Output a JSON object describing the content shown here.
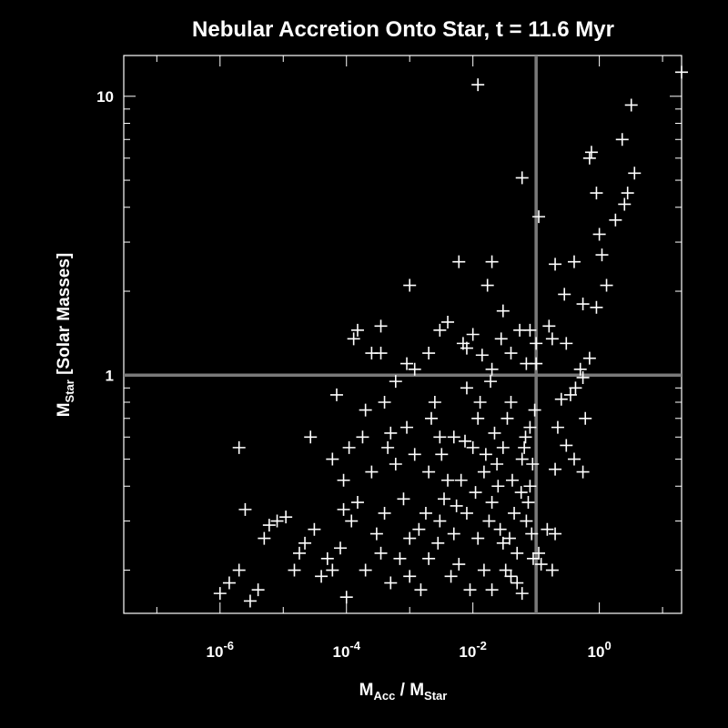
{
  "chart_data": {
    "type": "scatter",
    "title": "Nebular Accretion Onto Star, t = 11.6 Myr",
    "xlabel": {
      "main": "M",
      "sub1": "Acc",
      "mid": " / M",
      "sub2": "Star"
    },
    "ylabel": {
      "main": "M",
      "sub": "Star",
      "rest": " [Solar Masses]"
    },
    "x_scale": "log",
    "y_scale": "log",
    "xlim": [
      3e-08,
      20.0
    ],
    "ylim": [
      0.14,
      14
    ],
    "x_ticks": [
      {
        "base": "10",
        "exp": "-6",
        "value": 1e-06
      },
      {
        "base": "10",
        "exp": "-4",
        "value": 0.0001
      },
      {
        "base": "10",
        "exp": "-2",
        "value": 0.01
      },
      {
        "base": "10",
        "exp": "0",
        "value": 1
      }
    ],
    "y_ticks": [
      {
        "label": "1",
        "value": 1
      },
      {
        "label": "10",
        "value": 10
      }
    ],
    "reference_lines": {
      "x": 0.1,
      "y": 1
    },
    "colors": {
      "background": "#000000",
      "points": "#ffffff",
      "reference_lines": "#7a7a7a"
    },
    "marker": "plus",
    "grid": false,
    "series": [
      {
        "points": [
          [
            20,
            12.2
          ],
          [
            3.2,
            9.3
          ],
          [
            2.3,
            7.0
          ],
          [
            0.75,
            6.3
          ],
          [
            0.7,
            6.0
          ],
          [
            3.6,
            5.3
          ],
          [
            2.8,
            4.5
          ],
          [
            0.9,
            4.5
          ],
          [
            2.5,
            4.1
          ],
          [
            1.8,
            3.6
          ],
          [
            1.0,
            3.2
          ],
          [
            1.1,
            2.7
          ],
          [
            0.4,
            2.55
          ],
          [
            0.2,
            2.5
          ],
          [
            1.3,
            2.1
          ],
          [
            0.55,
            1.8
          ],
          [
            0.28,
            1.95
          ],
          [
            0.9,
            1.75
          ],
          [
            0.012,
            11
          ],
          [
            0.06,
            5.1
          ],
          [
            0.11,
            3.7
          ],
          [
            0.02,
            2.55
          ],
          [
            0.017,
            2.1
          ],
          [
            0.006,
            2.55
          ],
          [
            0.001,
            2.1
          ],
          [
            0.03,
            1.7
          ],
          [
            0.16,
            1.5
          ],
          [
            0.08,
            1.45
          ],
          [
            0.18,
            1.35
          ],
          [
            0.3,
            1.3
          ],
          [
            0.7,
            1.15
          ],
          [
            0.5,
            1.05
          ],
          [
            0.55,
            0.98
          ],
          [
            0.42,
            0.9
          ],
          [
            0.35,
            0.85
          ],
          [
            0.25,
            0.82
          ],
          [
            0.6,
            0.7
          ],
          [
            0.22,
            0.65
          ],
          [
            0.55,
            0.45
          ],
          [
            0.4,
            0.5
          ],
          [
            0.3,
            0.56
          ],
          [
            0.2,
            0.46
          ],
          [
            0.2,
            0.27
          ],
          [
            0.15,
            0.28
          ],
          [
            0.18,
            0.2
          ],
          [
            0.12,
            0.21
          ],
          [
            0.11,
            0.23
          ],
          [
            2e-06,
            0.55
          ],
          [
            2.5e-06,
            0.33
          ],
          [
            1.4e-06,
            0.18
          ],
          [
            2e-06,
            0.2
          ],
          [
            1e-06,
            0.165
          ],
          [
            3e-06,
            0.155
          ],
          [
            4e-06,
            0.17
          ],
          [
            5e-06,
            0.26
          ],
          [
            6e-06,
            0.29
          ],
          [
            8e-06,
            0.3
          ],
          [
            1.1e-05,
            0.31
          ],
          [
            1.5e-05,
            0.2
          ],
          [
            1.8e-05,
            0.23
          ],
          [
            2.2e-05,
            0.25
          ],
          [
            2.7e-05,
            0.6
          ],
          [
            3.1e-05,
            0.28
          ],
          [
            4e-05,
            0.19
          ],
          [
            5e-05,
            0.22
          ],
          [
            6e-05,
            0.5
          ],
          [
            7e-05,
            0.85
          ],
          [
            9e-05,
            0.42
          ],
          [
            0.00011,
            0.55
          ],
          [
            0.00013,
            1.35
          ],
          [
            0.00015,
            1.45
          ],
          [
            0.0002,
            0.75
          ],
          [
            0.00025,
            1.2
          ],
          [
            0.00035,
            1.5
          ],
          [
            0.00035,
            1.2
          ],
          [
            0.0006,
            0.95
          ],
          [
            0.0009,
            1.1
          ],
          [
            0.0012,
            1.05
          ],
          [
            0.002,
            1.2
          ],
          [
            0.003,
            1.45
          ],
          [
            0.004,
            1.55
          ],
          [
            0.007,
            1.3
          ],
          [
            0.008,
            1.25
          ],
          [
            0.01,
            1.4
          ],
          [
            0.014,
            1.18
          ],
          [
            0.02,
            1.05
          ],
          [
            0.028,
            1.35
          ],
          [
            0.04,
            1.2
          ],
          [
            0.055,
            1.45
          ],
          [
            0.07,
            1.1
          ],
          [
            0.1,
            1.3
          ],
          [
            0.1,
            1.1
          ],
          [
            0.04,
            0.8
          ],
          [
            0.08,
            0.65
          ],
          [
            0.06,
            0.5
          ],
          [
            0.08,
            0.4
          ],
          [
            0.07,
            0.3
          ],
          [
            0.09,
            0.22
          ],
          [
            0.05,
            0.18
          ],
          [
            0.06,
            0.165
          ],
          [
            0.04,
            0.19
          ],
          [
            0.03,
            0.25
          ],
          [
            0.02,
            0.35
          ],
          [
            0.015,
            0.45
          ],
          [
            0.01,
            0.55
          ],
          [
            0.012,
            0.7
          ],
          [
            0.008,
            0.9
          ],
          [
            0.005,
            0.6
          ],
          [
            0.004,
            0.42
          ],
          [
            0.003,
            0.3
          ],
          [
            0.002,
            0.22
          ],
          [
            0.0015,
            0.17
          ],
          [
            0.001,
            0.26
          ],
          [
            0.0008,
            0.36
          ],
          [
            0.0006,
            0.48
          ],
          [
            0.0005,
            0.62
          ],
          [
            0.0004,
            0.8
          ],
          [
            0.0003,
            0.27
          ],
          [
            0.0002,
            0.2
          ],
          [
            0.00015,
            0.35
          ],
          [
            0.0001,
            0.16
          ],
          [
            8e-05,
            0.24
          ],
          [
            0.0005,
            0.18
          ],
          [
            0.001,
            0.19
          ],
          [
            0.002,
            0.45
          ],
          [
            0.003,
            0.6
          ],
          [
            0.005,
            0.27
          ],
          [
            0.006,
            0.21
          ],
          [
            0.008,
            0.32
          ],
          [
            0.012,
            0.26
          ],
          [
            0.015,
            0.2
          ],
          [
            0.018,
            0.3
          ],
          [
            0.025,
            0.4
          ],
          [
            0.03,
            0.55
          ],
          [
            0.035,
            0.7
          ],
          [
            0.045,
            0.32
          ],
          [
            0.05,
            0.23
          ],
          [
            0.02,
            0.17
          ],
          [
            0.009,
            0.17
          ],
          [
            0.0007,
            0.22
          ],
          [
            0.0004,
            0.32
          ],
          [
            0.00025,
            0.45
          ],
          [
            0.00012,
            0.3
          ],
          [
            6e-05,
            0.2
          ],
          [
            0.0025,
            0.8
          ],
          [
            0.0035,
            0.36
          ],
          [
            0.0045,
            0.19
          ],
          [
            0.0065,
            0.42
          ],
          [
            0.011,
            0.38
          ],
          [
            0.016,
            0.52
          ],
          [
            0.022,
            0.62
          ],
          [
            0.027,
            0.28
          ],
          [
            0.033,
            0.2
          ],
          [
            0.042,
            0.42
          ],
          [
            0.065,
            0.55
          ],
          [
            0.075,
            0.35
          ],
          [
            0.085,
            0.27
          ],
          [
            0.095,
            0.75
          ],
          [
            0.0018,
            0.32
          ],
          [
            0.0012,
            0.52
          ],
          [
            0.0009,
            0.65
          ],
          [
            0.00045,
            0.55
          ],
          [
            0.00035,
            0.23
          ],
          [
            0.00018,
            0.6
          ],
          [
            9e-05,
            0.33
          ],
          [
            0.0014,
            0.28
          ],
          [
            0.0028,
            0.25
          ],
          [
            0.0055,
            0.34
          ],
          [
            0.0075,
            0.58
          ],
          [
            0.013,
            0.8
          ],
          [
            0.019,
            0.95
          ],
          [
            0.024,
            0.48
          ],
          [
            0.038,
            0.26
          ],
          [
            0.058,
            0.38
          ],
          [
            0.068,
            0.6
          ],
          [
            0.088,
            0.48
          ],
          [
            0.0032,
            0.52
          ],
          [
            0.0022,
            0.7
          ]
        ]
      }
    ]
  }
}
